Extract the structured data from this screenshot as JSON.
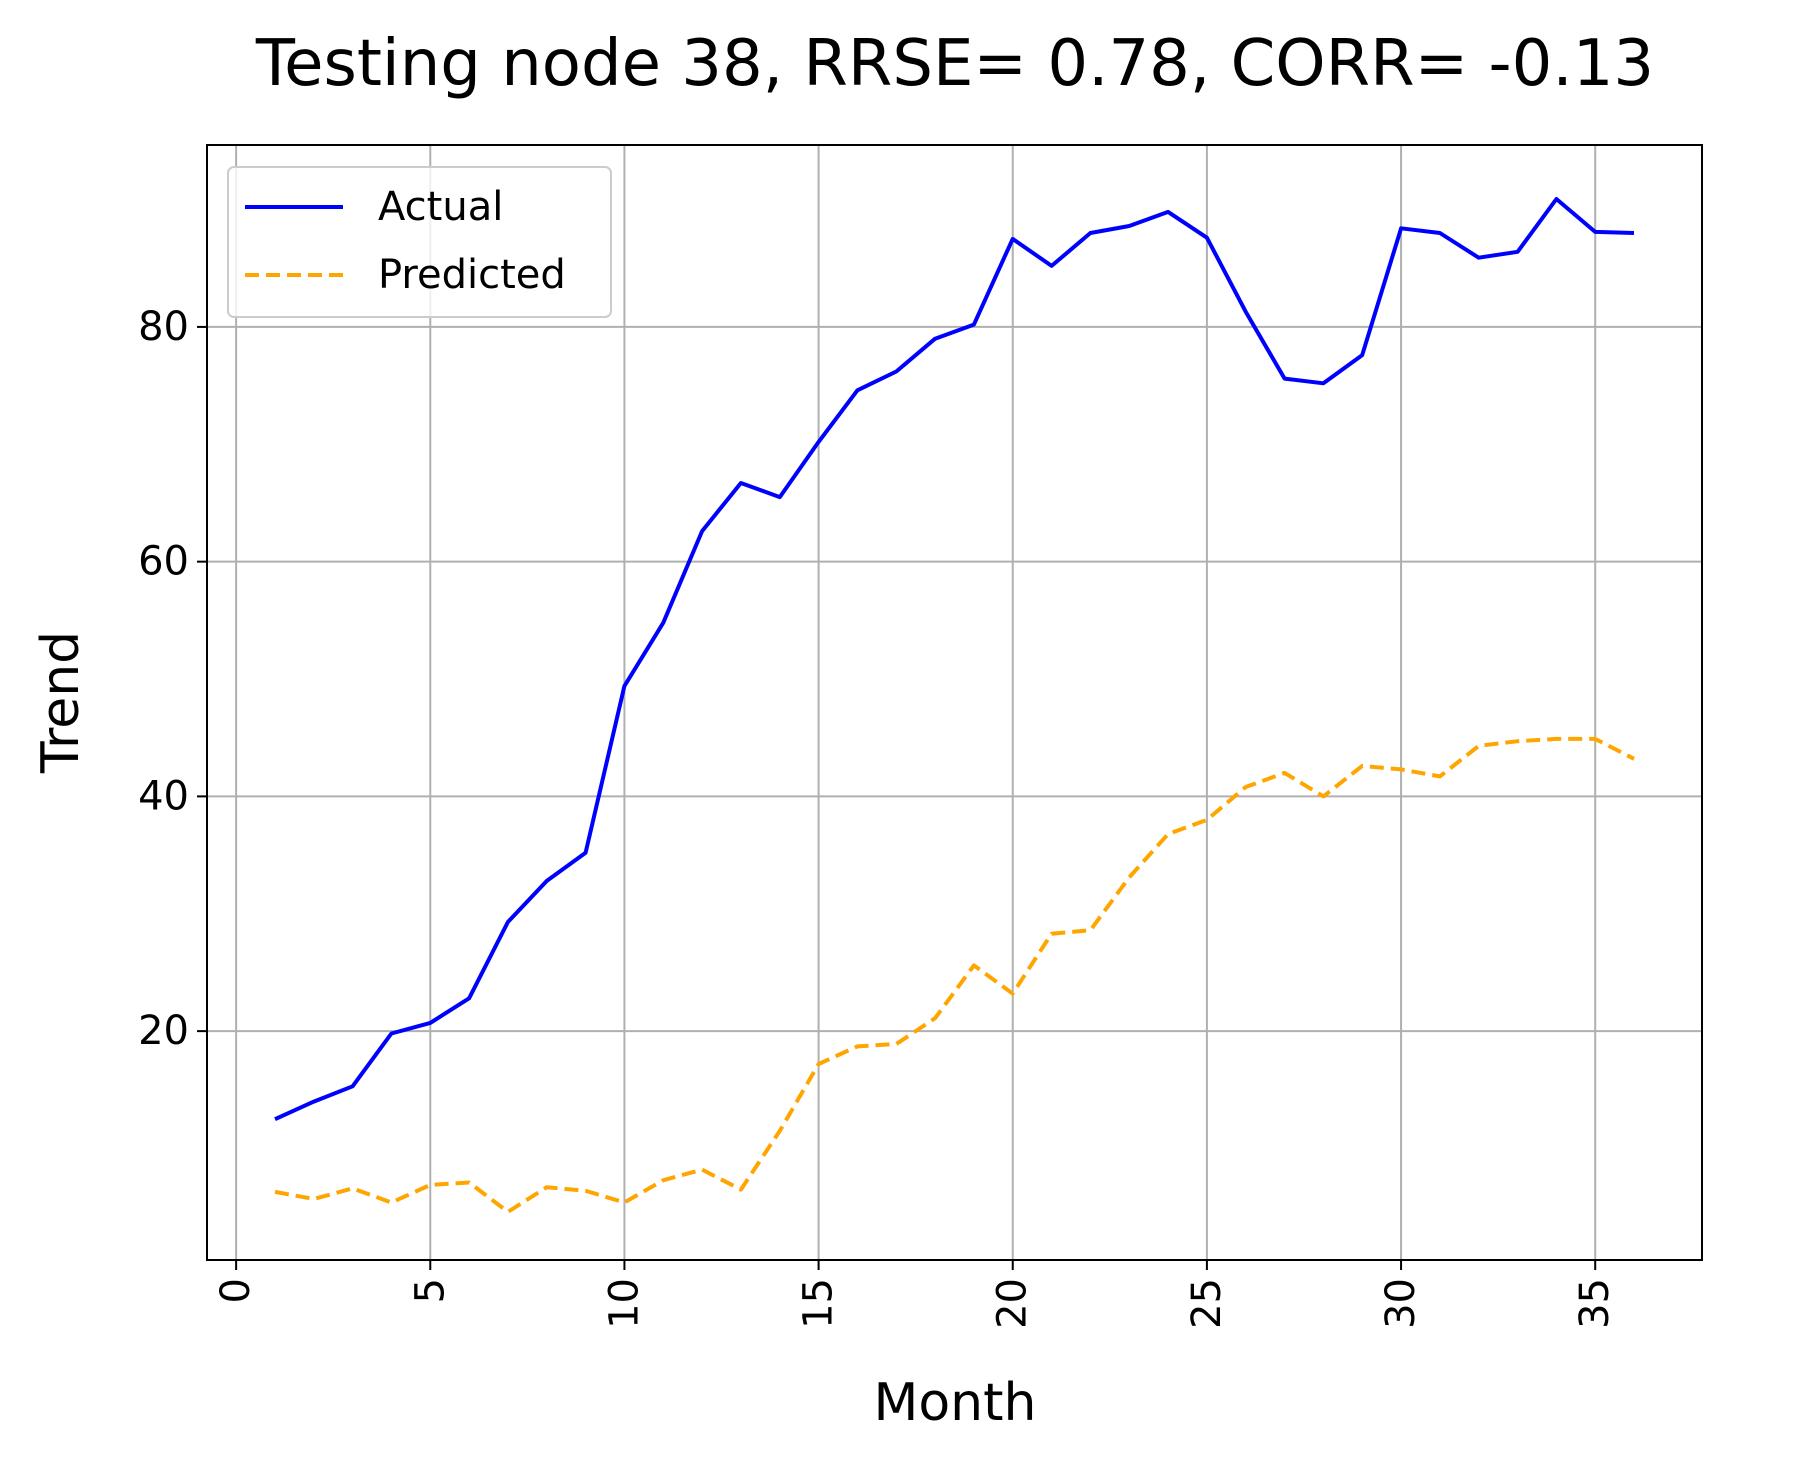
{
  "chart_data": {
    "type": "line",
    "title": "Testing node 38, RRSE= 0.78, CORR= -0.13",
    "xlabel": "Month",
    "ylabel": "Trend",
    "xlim": [
      -0.75,
      37.75
    ],
    "ylim": [
      0.5,
      95.5
    ],
    "xticks": [
      0,
      5,
      10,
      15,
      20,
      25,
      30,
      35
    ],
    "yticks": [
      20,
      40,
      60,
      80
    ],
    "grid": true,
    "legend": {
      "position": "top-left"
    },
    "x": [
      1,
      2,
      3,
      4,
      5,
      6,
      7,
      8,
      9,
      10,
      11,
      12,
      13,
      14,
      15,
      16,
      17,
      18,
      19,
      20,
      21,
      22,
      23,
      24,
      25,
      26,
      27,
      28,
      29,
      30,
      31,
      32,
      33,
      34,
      35,
      36
    ],
    "series": [
      {
        "name": "Actual",
        "color": "#0000ff",
        "style": "solid",
        "values": [
          12.5,
          14.0,
          15.3,
          19.8,
          20.7,
          22.8,
          29.3,
          32.8,
          35.2,
          49.4,
          54.8,
          62.6,
          66.7,
          65.5,
          70.2,
          74.6,
          76.2,
          79.0,
          80.2,
          87.5,
          85.2,
          88.0,
          88.6,
          89.8,
          87.6,
          81.3,
          75.6,
          75.2,
          77.6,
          88.4,
          88.0,
          85.9,
          86.4,
          90.9,
          88.1,
          88.0
        ]
      },
      {
        "name": "Predicted",
        "color": "#ffa500",
        "style": "dashed",
        "values": [
          6.3,
          5.7,
          6.6,
          5.4,
          6.9,
          7.1,
          4.6,
          6.7,
          6.4,
          5.4,
          7.3,
          8.2,
          6.5,
          11.5,
          17.2,
          18.7,
          18.9,
          21.1,
          25.6,
          23.2,
          28.3,
          28.6,
          33.1,
          36.8,
          38.0,
          40.8,
          42.0,
          40.0,
          42.6,
          42.3,
          41.7,
          44.3,
          44.7,
          44.9,
          44.9,
          43.2
        ]
      }
    ]
  }
}
